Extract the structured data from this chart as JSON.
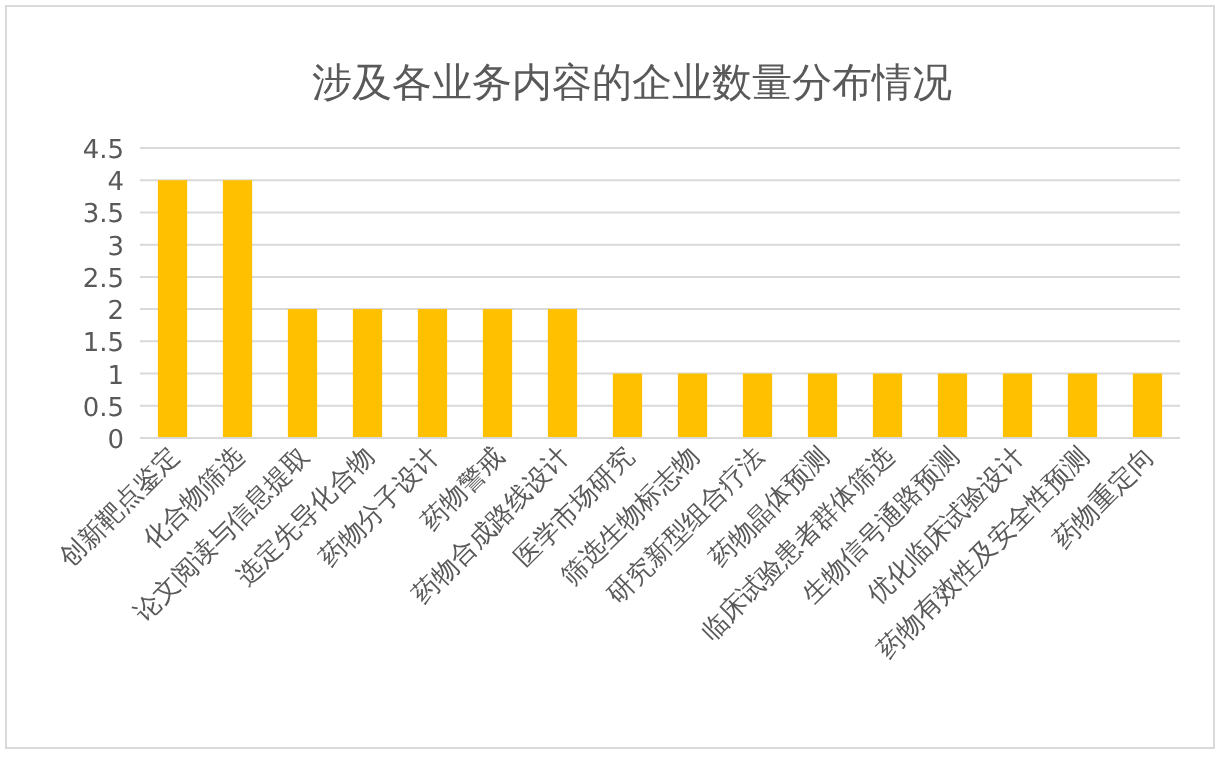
{
  "chart_data": {
    "type": "bar",
    "title": "涉及各业务内容的企业数量分布情况",
    "categories": [
      "创新靶点鉴定",
      "化合物筛选",
      "论文阅读与信息提取",
      "选定先导化合物",
      "药物分子设计",
      "药物警戒",
      "药物合成路线设计",
      "医学市场研究",
      "筛选生物标志物",
      "研究新型组合疗法",
      "药物晶体预测",
      "临床试验患者群体筛选",
      "生物信号通路预测",
      "优化临床试验设计",
      "药物有效性及安全性预测",
      "药物重定向"
    ],
    "values": [
      4,
      4,
      2,
      2,
      2,
      2,
      2,
      1,
      1,
      1,
      1,
      1,
      1,
      1,
      1,
      1
    ],
    "color": "#ffc000",
    "ylim": [
      0,
      4.5
    ],
    "yticks": [
      0,
      0.5,
      1,
      1.5,
      2,
      2.5,
      3,
      3.5,
      4,
      4.5
    ],
    "grid": "y"
  }
}
